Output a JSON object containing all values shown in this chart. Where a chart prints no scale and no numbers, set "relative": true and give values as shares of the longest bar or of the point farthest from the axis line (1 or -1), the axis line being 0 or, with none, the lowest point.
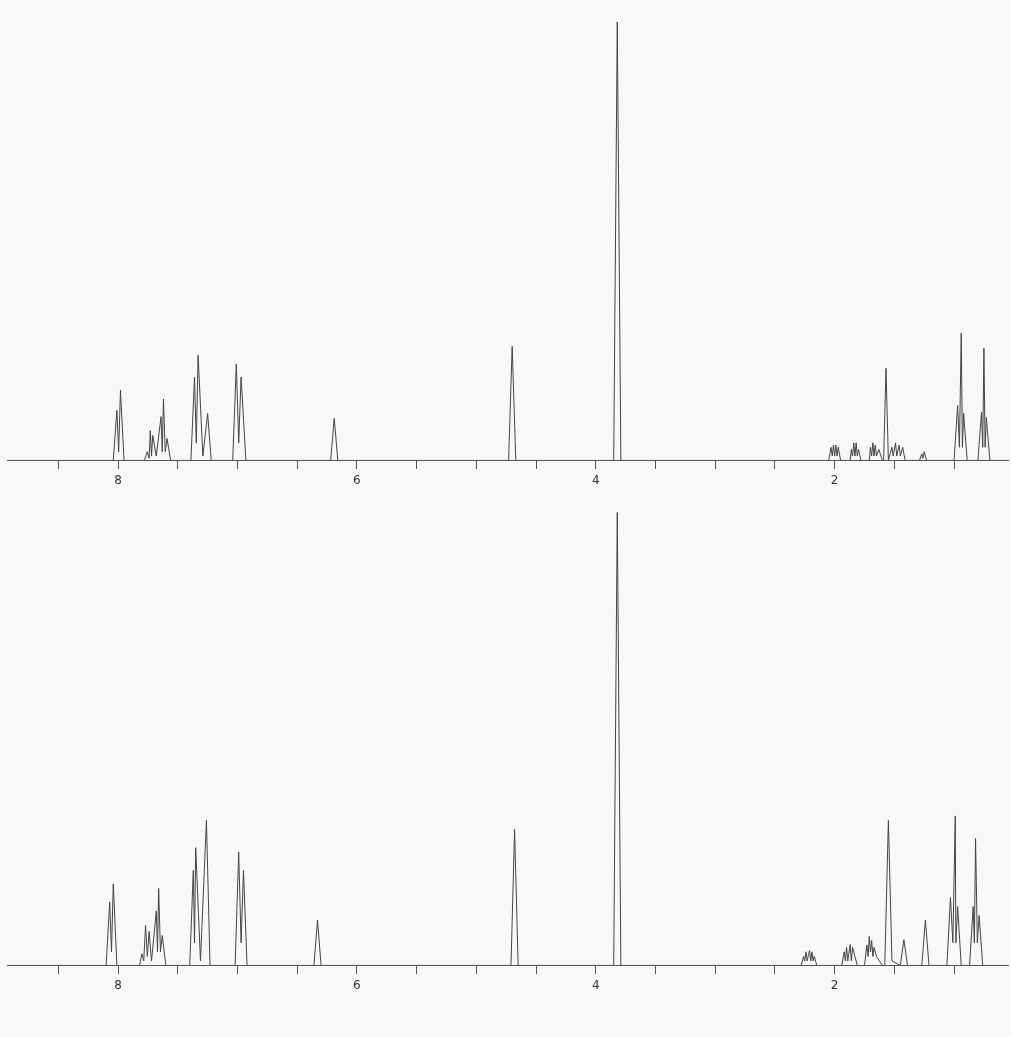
{
  "chart_data": [
    {
      "type": "line",
      "relative": true,
      "color": "#444444",
      "xlim": [
        8.93,
        0.54
      ],
      "xticks": [
        {
          "value": 8.5,
          "label": null
        },
        8,
        {
          "value": 7.5,
          "label": null
        },
        {
          "value": 7,
          "label": null
        },
        {
          "value": 6.5,
          "label": null
        },
        6,
        {
          "value": 5.5,
          "label": null
        },
        {
          "value": 5,
          "label": null
        },
        {
          "value": 4.5,
          "label": null
        },
        4,
        {
          "value": 3.5,
          "label": null
        },
        {
          "value": 3,
          "label": null
        },
        {
          "value": 2.5,
          "label": null
        },
        2,
        {
          "value": 1.5,
          "label": null
        },
        {
          "value": 1,
          "label": null
        }
      ],
      "x": [
        8.93,
        8.04,
        8.01,
        7.995,
        7.98,
        7.95,
        7.78,
        7.755,
        7.74,
        7.73,
        7.72,
        7.71,
        7.68,
        7.64,
        7.63,
        7.62,
        7.605,
        7.59,
        7.56,
        7.39,
        7.36,
        7.345,
        7.33,
        7.29,
        7.25,
        7.22,
        7.04,
        7.01,
        6.99,
        6.97,
        6.93,
        6.22,
        6.19,
        6.16,
        4.73,
        4.7,
        4.67,
        3.85,
        3.82,
        3.79,
        2.05,
        2.03,
        2.02,
        2.01,
        2.0,
        1.99,
        1.98,
        1.97,
        1.95,
        1.87,
        1.86,
        1.85,
        1.84,
        1.83,
        1.82,
        1.81,
        1.8,
        1.78,
        1.71,
        1.7,
        1.69,
        1.68,
        1.67,
        1.66,
        1.65,
        1.63,
        1.6,
        1.59,
        1.57,
        1.55,
        1.52,
        1.51,
        1.49,
        1.48,
        1.46,
        1.45,
        1.43,
        1.41,
        1.29,
        1.27,
        1.26,
        1.25,
        1.23,
        1.0,
        0.97,
        0.955,
        0.94,
        0.93,
        0.92,
        0.89,
        0.8,
        0.77,
        0.76,
        0.75,
        0.74,
        0.73,
        0.7,
        0.54
      ],
      "values": [
        0,
        0,
        0.114,
        0.02,
        0.16,
        0,
        0,
        0.02,
        0.005,
        0.068,
        0.01,
        0.057,
        0.01,
        0.1,
        0.02,
        0.14,
        0.02,
        0.05,
        0,
        0,
        0.19,
        0.04,
        0.24,
        0.01,
        0.107,
        0,
        0,
        0.22,
        0.04,
        0.19,
        0,
        0,
        0.096,
        0,
        0,
        0.26,
        0,
        0,
        1,
        0,
        0,
        0.03,
        0.01,
        0.035,
        0.01,
        0.035,
        0.01,
        0.03,
        0,
        0,
        0.025,
        0.01,
        0.04,
        0.01,
        0.04,
        0.01,
        0.025,
        0,
        0,
        0.03,
        0.01,
        0.04,
        0.01,
        0.035,
        0.01,
        0.025,
        0,
        0,
        0.21,
        0,
        0.03,
        0.01,
        0.04,
        0.01,
        0.035,
        0.01,
        0.03,
        0,
        0,
        0.015,
        0.005,
        0.02,
        0,
        0,
        0.125,
        0.03,
        0.29,
        0.03,
        0.107,
        0,
        0,
        0.11,
        0.03,
        0.256,
        0.03,
        0.098,
        0,
        0
      ]
    },
    {
      "type": "line",
      "relative": true,
      "color": "#444444",
      "xlim": [
        8.93,
        0.54
      ],
      "xticks": [
        {
          "value": 8.5,
          "label": null
        },
        8,
        {
          "value": 7.5,
          "label": null
        },
        {
          "value": 7,
          "label": null
        },
        {
          "value": 6.5,
          "label": null
        },
        6,
        {
          "value": 5.5,
          "label": null
        },
        {
          "value": 5,
          "label": null
        },
        {
          "value": 4.5,
          "label": null
        },
        4,
        {
          "value": 3.5,
          "label": null
        },
        {
          "value": 3,
          "label": null
        },
        {
          "value": 2.5,
          "label": null
        },
        2,
        {
          "value": 1.5,
          "label": null
        },
        {
          "value": 1,
          "label": null
        }
      ],
      "x": [
        8.93,
        8.1,
        8.07,
        8.055,
        8.04,
        8.01,
        7.82,
        7.8,
        7.785,
        7.77,
        7.755,
        7.74,
        7.72,
        7.68,
        7.67,
        7.66,
        7.645,
        7.63,
        7.6,
        7.4,
        7.37,
        7.36,
        7.35,
        7.31,
        7.26,
        7.23,
        7.02,
        6.99,
        6.97,
        6.95,
        6.92,
        6.36,
        6.33,
        6.3,
        4.71,
        4.68,
        4.65,
        3.85,
        3.82,
        3.79,
        2.28,
        2.26,
        2.25,
        2.24,
        2.23,
        2.21,
        2.2,
        2.19,
        2.18,
        2.17,
        2.15,
        1.94,
        1.92,
        1.91,
        1.9,
        1.89,
        1.87,
        1.86,
        1.85,
        1.83,
        1.81,
        1.75,
        1.73,
        1.72,
        1.71,
        1.7,
        1.69,
        1.68,
        1.67,
        1.65,
        1.6,
        1.58,
        1.55,
        1.52,
        1.45,
        1.42,
        1.39,
        1.27,
        1.24,
        1.21,
        1.06,
        1.03,
        1.01,
        0.99,
        0.985,
        0.97,
        0.94,
        0.87,
        0.84,
        0.83,
        0.82,
        0.805,
        0.79,
        0.76,
        0.54
      ],
      "values": [
        0,
        0,
        0.14,
        0.03,
        0.18,
        0,
        0,
        0.026,
        0.01,
        0.088,
        0.02,
        0.075,
        0.01,
        0.12,
        0.03,
        0.17,
        0.03,
        0.066,
        0,
        0,
        0.21,
        0.05,
        0.26,
        0.01,
        0.32,
        0,
        0,
        0.25,
        0.05,
        0.21,
        0,
        0,
        0.1,
        0,
        0,
        0.3,
        0,
        0,
        1,
        0,
        0,
        0.02,
        0.01,
        0.03,
        0.01,
        0.033,
        0.01,
        0.03,
        0.01,
        0.02,
        0,
        0,
        0.03,
        0.01,
        0.04,
        0.01,
        0.046,
        0.01,
        0.04,
        0.02,
        0,
        0,
        0.045,
        0.02,
        0.064,
        0.03,
        0.055,
        0.02,
        0.04,
        0.02,
        0,
        0,
        0.32,
        0.01,
        0,
        0.057,
        0,
        0,
        0.1,
        0,
        0,
        0.15,
        0.05,
        0.33,
        0.05,
        0.13,
        0,
        0,
        0.13,
        0.05,
        0.28,
        0.05,
        0.11,
        0,
        0
      ]
    }
  ]
}
